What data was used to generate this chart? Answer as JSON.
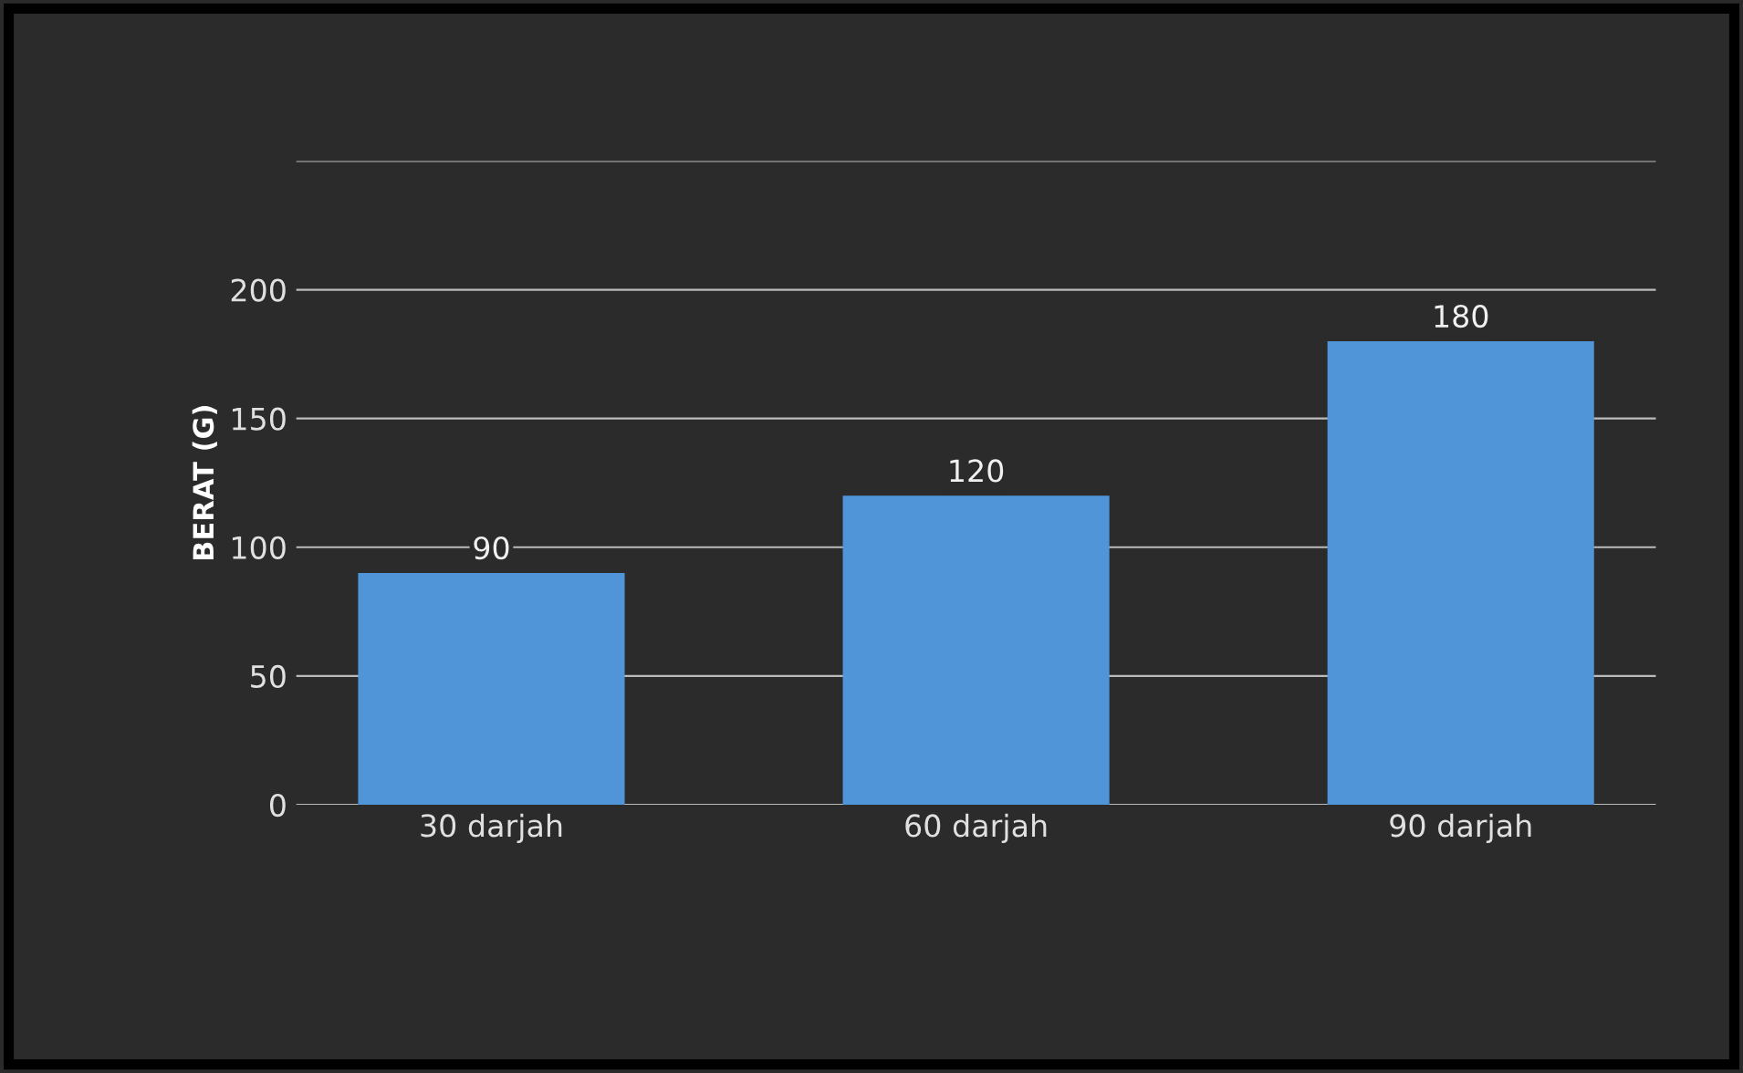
{
  "chart_data": {
    "type": "bar",
    "ylabel": "BERAT (G)",
    "categories": [
      "30 darjah",
      "60 darjah",
      "90 darjah"
    ],
    "values": [
      90,
      120,
      180
    ],
    "color": "#4f95d8",
    "ylim": [
      0,
      250
    ],
    "yticks": [
      0,
      50,
      100,
      150,
      200,
      {
        "value": 250,
        "label": null
      }
    ],
    "grid": "y",
    "data_labels": true
  }
}
